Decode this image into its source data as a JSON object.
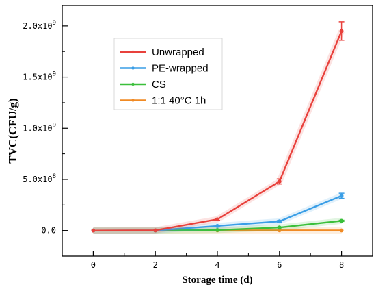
{
  "chart_data": {
    "type": "line",
    "xlabel": "Storage time (d)",
    "ylabel": "TVC(CFU/g)",
    "x": [
      0,
      2,
      4,
      6,
      8
    ],
    "xlim": [
      -1,
      9
    ],
    "ylim": [
      -0.25,
      2.2
    ],
    "x_ticks": [
      0,
      2,
      4,
      6,
      8
    ],
    "x_tick_labels": [
      "0",
      "2",
      "4",
      "6",
      "8"
    ],
    "y_ticks": [
      0,
      0.5,
      1.0,
      1.5,
      2.0
    ],
    "y_tick_labels": [
      {
        "mantissa": "0.0",
        "exp": ""
      },
      {
        "mantissa": "5.0x10",
        "exp": "8"
      },
      {
        "mantissa": "1.0x10",
        "exp": "9"
      },
      {
        "mantissa": "1.5x10",
        "exp": "9"
      },
      {
        "mantissa": "2.0x10",
        "exp": "9"
      }
    ],
    "y_units_note": "values in units of 10^9 CFU/g",
    "grid": false,
    "legend_position": "upper-left",
    "series": [
      {
        "name": "Unwrapped",
        "color": "#e8413c",
        "values": [
          0,
          0.002,
          0.11,
          0.48,
          1.95
        ],
        "errors": [
          0,
          0,
          0.01,
          0.025,
          0.09
        ]
      },
      {
        "name": "PE-wrapped",
        "color": "#3a9ee6",
        "values": [
          0,
          0.001,
          0.045,
          0.09,
          0.34
        ],
        "errors": [
          0,
          0,
          0.005,
          0.008,
          0.025
        ]
      },
      {
        "name": "CS",
        "color": "#3bbf3b",
        "values": [
          0,
          0.0005,
          0.005,
          0.03,
          0.095
        ],
        "errors": [
          0,
          0,
          0.002,
          0.004,
          0.006
        ]
      },
      {
        "name": "1:1 40°C 1h",
        "color": "#f08a24",
        "values": [
          0,
          0,
          0.002,
          0.002,
          0.001
        ],
        "errors": [
          0,
          0,
          0,
          0,
          0
        ]
      }
    ]
  }
}
